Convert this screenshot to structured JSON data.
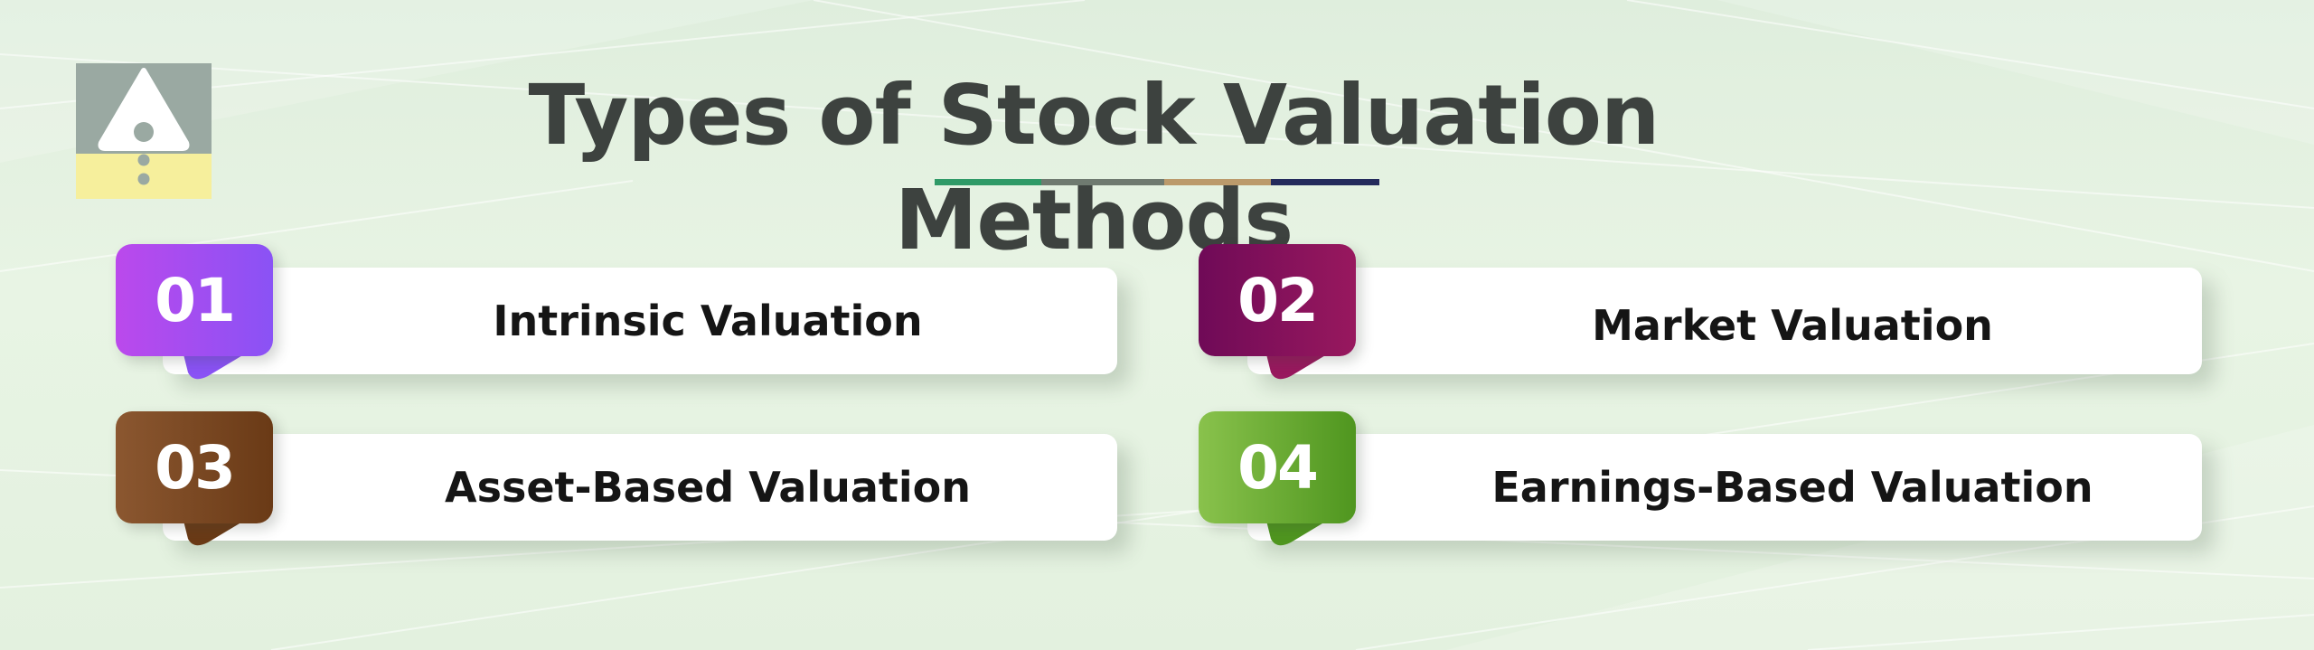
{
  "title": "Types of Stock Valuation Methods",
  "underline_colors": [
    "#2f9a67",
    "#6f7a70",
    "#bb9a6b",
    "#242b5c"
  ],
  "items": [
    {
      "number": "01",
      "label": "Intrinsic Valuation",
      "gradient": [
        "#bb49ec",
        "#8a52f5"
      ]
    },
    {
      "number": "02",
      "label": "Market Valuation",
      "gradient": [
        "#6f0a57",
        "#98185e"
      ]
    },
    {
      "number": "03",
      "label": "Asset-Based Valuation",
      "gradient": [
        "#8b5730",
        "#6a3a16"
      ]
    },
    {
      "number": "04",
      "label": "Earnings-Based Valuation",
      "gradient": [
        "#89c24c",
        "#4f961f"
      ]
    }
  ],
  "logo": {
    "top_color": "#9aa9a2",
    "bottom_color": "#f6ef9c",
    "icon": "warning-triangle-icon"
  }
}
